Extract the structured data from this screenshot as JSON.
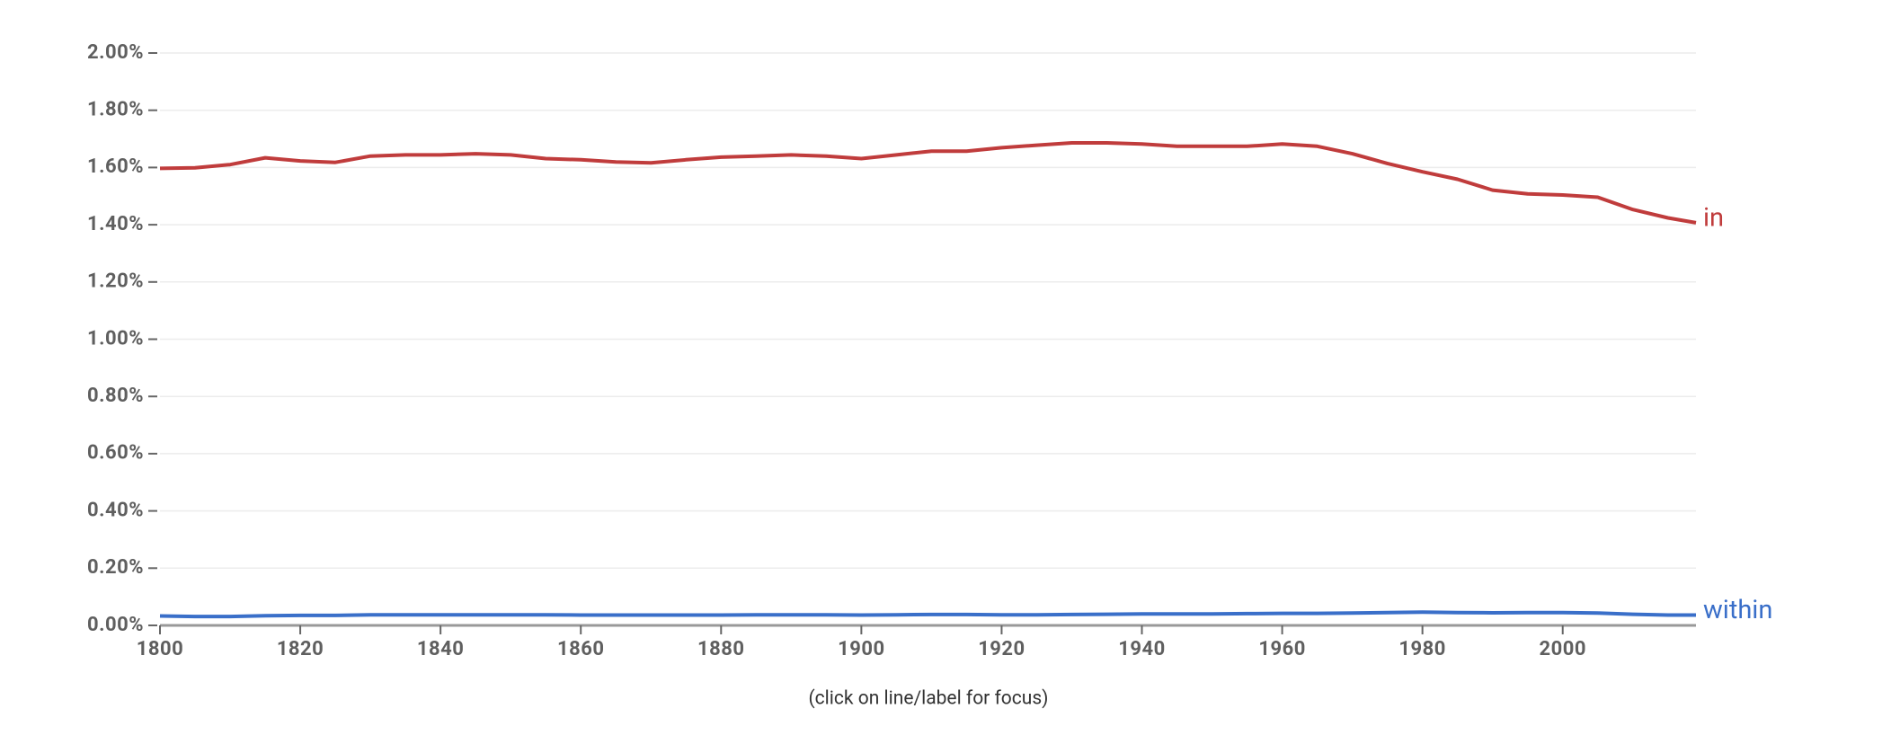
{
  "chart_data": {
    "type": "line",
    "note": "(click on line/label for focus)",
    "x": [
      1800,
      1805,
      1810,
      1815,
      1820,
      1825,
      1830,
      1835,
      1840,
      1845,
      1850,
      1855,
      1860,
      1865,
      1870,
      1875,
      1880,
      1885,
      1890,
      1895,
      1900,
      1905,
      1910,
      1915,
      1920,
      1925,
      1930,
      1935,
      1940,
      1945,
      1950,
      1955,
      1960,
      1965,
      1970,
      1975,
      1980,
      1985,
      1990,
      1995,
      2000,
      2005,
      2010,
      2015,
      2019
    ],
    "series": [
      {
        "name": "in",
        "color": "#c03c3c",
        "values": [
          1.597,
          1.599,
          1.61,
          1.634,
          1.623,
          1.618,
          1.64,
          1.644,
          1.644,
          1.648,
          1.644,
          1.631,
          1.627,
          1.619,
          1.616,
          1.627,
          1.636,
          1.64,
          1.644,
          1.64,
          1.631,
          1.644,
          1.657,
          1.657,
          1.669,
          1.678,
          1.686,
          1.686,
          1.682,
          1.674,
          1.674,
          1.674,
          1.682,
          1.674,
          1.648,
          1.614,
          1.585,
          1.559,
          1.521,
          1.508,
          1.504,
          1.496,
          1.453,
          1.424,
          1.407
        ]
      },
      {
        "name": "within",
        "color": "#3a6fc9",
        "values": [
          0.033,
          0.031,
          0.031,
          0.034,
          0.035,
          0.035,
          0.037,
          0.037,
          0.037,
          0.037,
          0.037,
          0.037,
          0.036,
          0.036,
          0.036,
          0.036,
          0.036,
          0.037,
          0.037,
          0.037,
          0.036,
          0.037,
          0.038,
          0.038,
          0.037,
          0.037,
          0.038,
          0.039,
          0.04,
          0.04,
          0.04,
          0.041,
          0.042,
          0.042,
          0.043,
          0.045,
          0.046,
          0.045,
          0.044,
          0.045,
          0.045,
          0.043,
          0.039,
          0.036,
          0.036
        ]
      }
    ],
    "xlim": [
      1800,
      2019
    ],
    "xticks": [
      1800,
      1820,
      1840,
      1860,
      1880,
      1900,
      1920,
      1940,
      1960,
      1980,
      2000
    ],
    "ylim": [
      0,
      2
    ],
    "yticks": [
      {
        "value": 0,
        "label": "0.00%"
      },
      {
        "value": 0.2,
        "label": "0.20%"
      },
      {
        "value": 0.4,
        "label": "0.40%"
      },
      {
        "value": 0.6,
        "label": "0.60%"
      },
      {
        "value": 0.8,
        "label": "0.80%"
      },
      {
        "value": 1,
        "label": "1.00%"
      },
      {
        "value": 1.2,
        "label": "1.20%"
      },
      {
        "value": 1.4,
        "label": "1.40%"
      },
      {
        "value": 1.6,
        "label": "1.60%"
      },
      {
        "value": 1.8,
        "label": "1.80%"
      },
      {
        "value": 2,
        "label": "2.00%"
      }
    ],
    "grid": true
  }
}
